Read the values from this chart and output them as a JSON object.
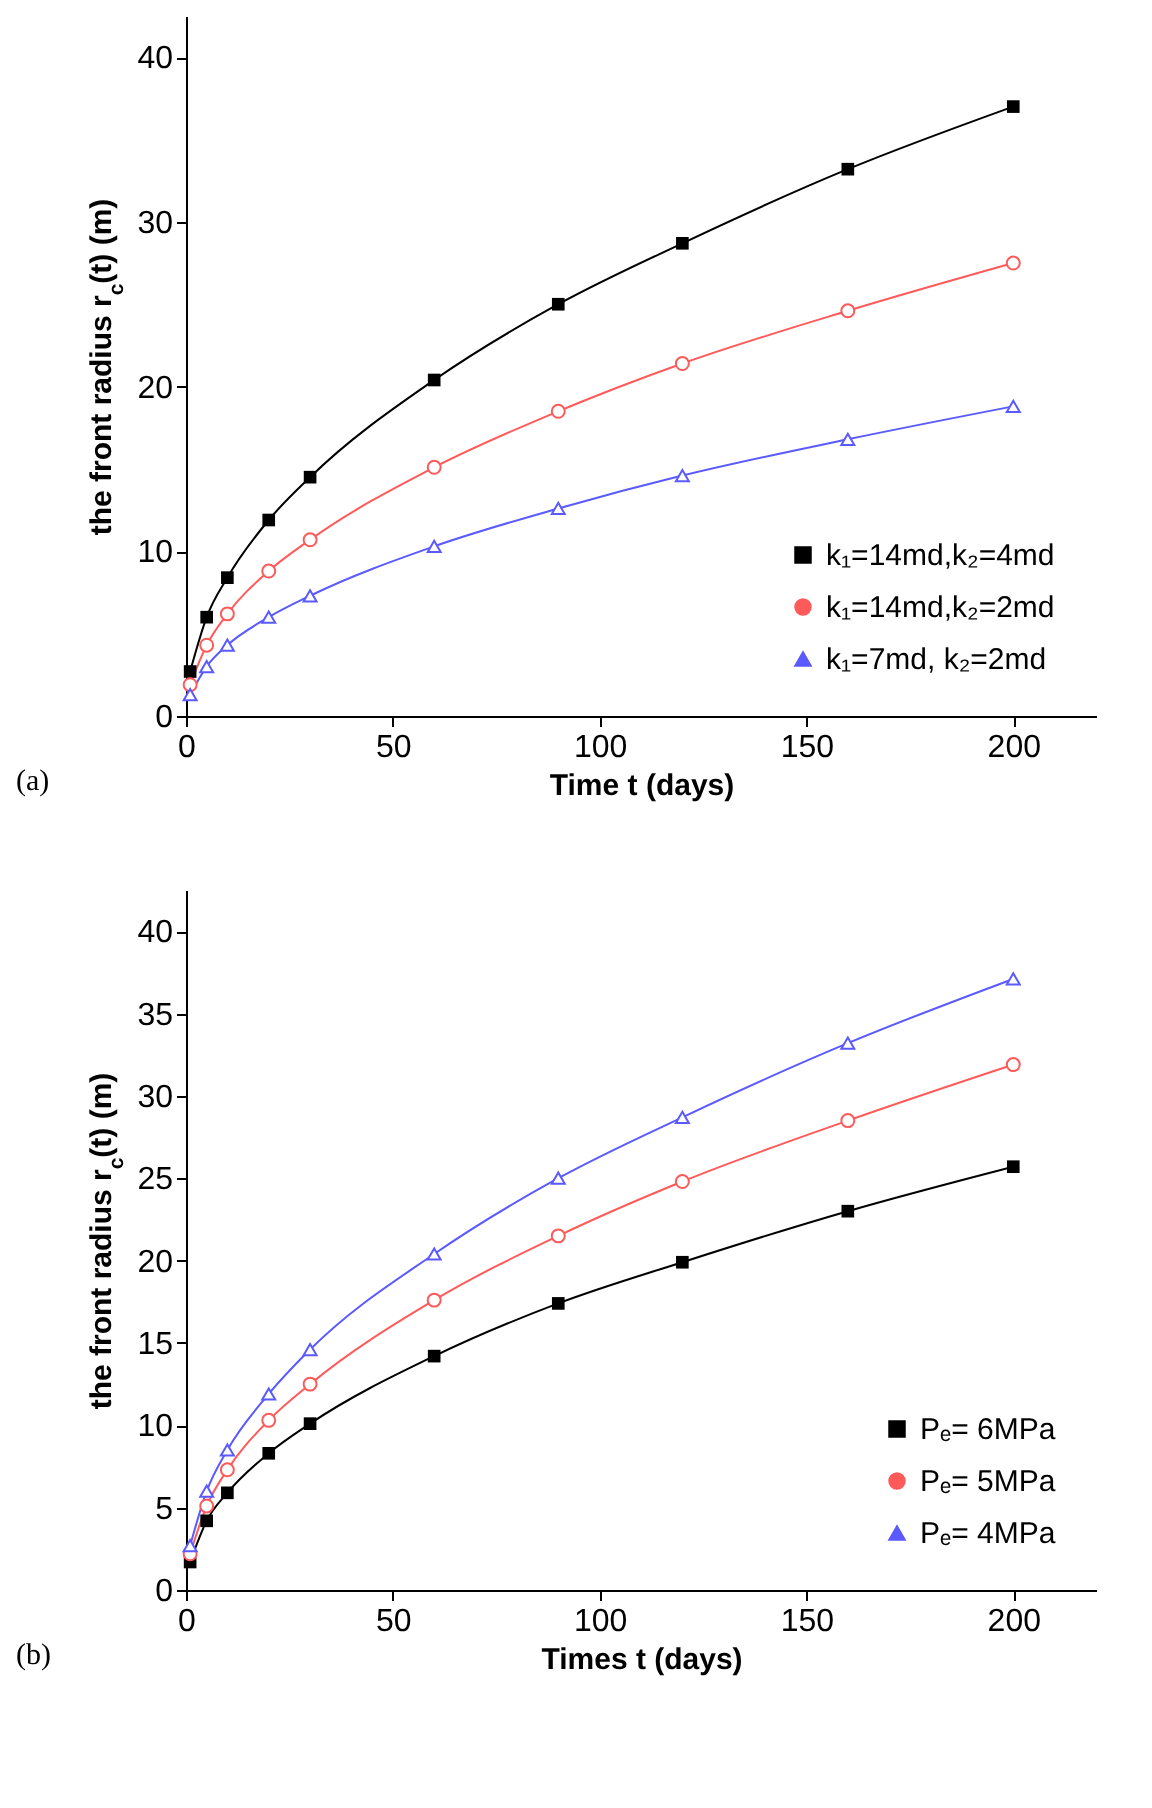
{
  "chart_data": [
    {
      "type": "line",
      "xlabel": "Time t (days)",
      "ylabel": "the front radius r$_{c}$(t) (m)",
      "annotations": [
        "(a)"
      ],
      "x": [
        1,
        5,
        10,
        20,
        30,
        60,
        90,
        120,
        160,
        200
      ],
      "series": [
        {
          "name": "k₁=14md,k₂=4md",
          "color": "#000000",
          "marker": "square",
          "values": [
            2.7,
            6.0,
            8.4,
            11.9,
            14.5,
            20.4,
            25.0,
            28.7,
            33.2,
            37.0
          ]
        },
        {
          "name": "k₁=14md,k₂=2md",
          "color": "#ff5a5a",
          "marker": "circle",
          "values": [
            1.9,
            4.3,
            6.2,
            8.8,
            10.7,
            15.1,
            18.5,
            21.4,
            24.6,
            27.5
          ]
        },
        {
          "name": "k₁=7md, k₂=2md",
          "color": "#5a5aff",
          "marker": "triangle",
          "values": [
            1.3,
            3.0,
            4.3,
            6.0,
            7.3,
            10.3,
            12.6,
            14.6,
            16.8,
            18.8
          ]
        }
      ],
      "xlim": [
        0,
        220
      ],
      "xticks": [
        0,
        50,
        100,
        150,
        200
      ],
      "ylim": [
        0,
        42.5
      ],
      "yticks": [
        0,
        10,
        20,
        30,
        40
      ],
      "legend": "bottom right"
    },
    {
      "type": "line",
      "xlabel": "Times  t  (days)",
      "ylabel": "the front radius r$_{c}$(t)  (m)",
      "annotations": [
        "(b)"
      ],
      "x": [
        1,
        5,
        10,
        20,
        30,
        60,
        90,
        120,
        160,
        200
      ],
      "series": [
        {
          "name": "Pₑ= 6MPa",
          "color": "#000000",
          "marker": "square",
          "values": [
            1.7,
            4.2,
            5.9,
            8.3,
            10.1,
            14.2,
            17.4,
            19.9,
            23.0,
            25.7
          ]
        },
        {
          "name": "Pₑ= 5MPa",
          "color": "#ff5a5a",
          "marker": "circle",
          "values": [
            2.2,
            5.1,
            7.3,
            10.3,
            12.5,
            17.6,
            21.5,
            24.8,
            28.5,
            31.9
          ]
        },
        {
          "name": "Pₑ= 4MPa",
          "color": "#5a5aff",
          "marker": "triangle",
          "values": [
            2.7,
            6.0,
            8.5,
            11.9,
            14.6,
            20.4,
            25.0,
            28.7,
            33.2,
            37.1
          ]
        }
      ],
      "xlim": [
        0,
        220
      ],
      "xticks": [
        0,
        50,
        100,
        150,
        200
      ],
      "ylim": [
        0,
        42.5
      ],
      "yticks": [
        0,
        5,
        10,
        15,
        20,
        25,
        30,
        35,
        40
      ],
      "legend": "bottom right"
    }
  ]
}
